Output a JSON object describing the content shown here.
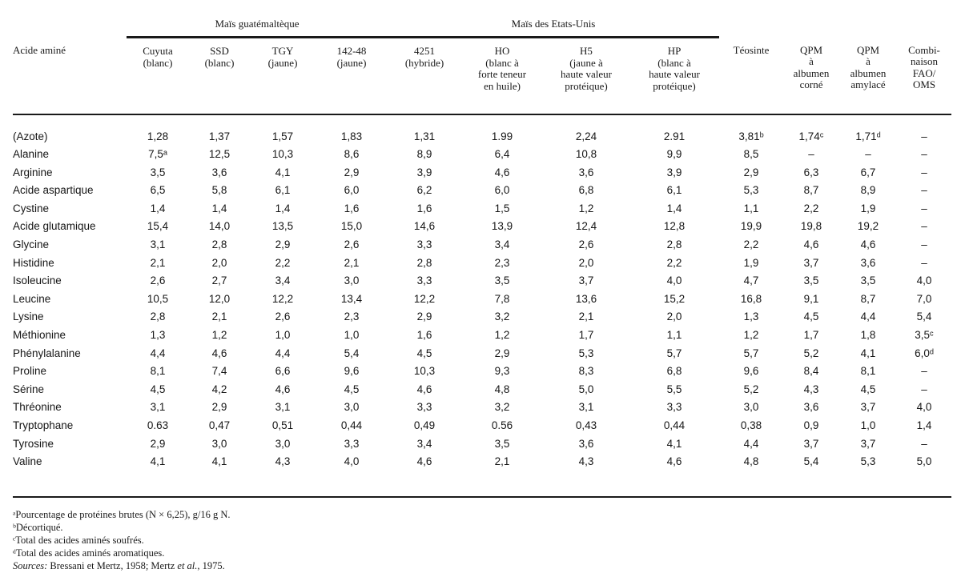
{
  "page": {
    "background_color": "#ffffff",
    "text_color": "#1a1a1a"
  },
  "table": {
    "row_header_label": "Acide aminé",
    "groups": [
      {
        "label": "Maïs guatémaltèque",
        "span": 4
      },
      {
        "label": "Maïs des Etats-Unis",
        "span": 4
      }
    ],
    "columns": [
      {
        "id": "cuyuta",
        "lines": [
          "Cuyuta",
          "(blanc)"
        ]
      },
      {
        "id": "ssd",
        "lines": [
          "SSD",
          "(blanc)"
        ]
      },
      {
        "id": "tgy",
        "lines": [
          "TGY",
          "(jaune)"
        ]
      },
      {
        "id": "142-48",
        "lines": [
          "142-48",
          "(jaune)"
        ]
      },
      {
        "id": "4251",
        "lines": [
          "4251",
          "(hybride)"
        ]
      },
      {
        "id": "ho",
        "lines": [
          "HO",
          "(blanc à",
          "forte teneur",
          "en huile)"
        ]
      },
      {
        "id": "h5",
        "lines": [
          "H5",
          "(jaune à",
          "haute valeur",
          "protéique)"
        ]
      },
      {
        "id": "hp",
        "lines": [
          "HP",
          "(blanc à",
          "haute valeur",
          "protéique)"
        ]
      },
      {
        "id": "teosinte",
        "lines": [
          "Téosinte"
        ]
      },
      {
        "id": "qpm-corne",
        "lines": [
          "QPM",
          "à",
          "albumen",
          "corné"
        ]
      },
      {
        "id": "qpm-amylace",
        "lines": [
          "QPM",
          "à",
          "albumen",
          "amylacé"
        ]
      },
      {
        "id": "fao-oms",
        "lines": [
          "Combi-",
          "naison",
          "FAO/",
          "OMS"
        ]
      }
    ],
    "rows": [
      {
        "label": "(Azote)",
        "values": [
          "1,28",
          "1,37",
          "1,57",
          "1,83",
          "1,31",
          "1.99",
          "2,24",
          "2.91",
          "3,81ᵇ",
          "1,74ᶜ",
          "1,71ᵈ",
          "–"
        ]
      },
      {
        "label": "Alanine",
        "values": [
          "7,5ᵃ",
          "12,5",
          "10,3",
          "8,6",
          "8,9",
          "6,4",
          "10,8",
          "9,9",
          "8,5",
          "–",
          "–",
          "–"
        ]
      },
      {
        "label": "Arginine",
        "values": [
          "3,5",
          "3,6",
          "4,1",
          "2,9",
          "3,9",
          "4,6",
          "3,6",
          "3,9",
          "2,9",
          "6,3",
          "6,7",
          "–"
        ]
      },
      {
        "label": "Acide aspartique",
        "values": [
          "6,5",
          "5,8",
          "6,1",
          "6,0",
          "6,2",
          "6,0",
          "6,8",
          "6,1",
          "5,3",
          "8,7",
          "8,9",
          "–"
        ]
      },
      {
        "label": "Cystine",
        "values": [
          "1,4",
          "1,4",
          "1,4",
          "1,6",
          "1,6",
          "1,5",
          "1,2",
          "1,4",
          "1,1",
          "2,2",
          "1,9",
          "–"
        ]
      },
      {
        "label": "Acide glutamique",
        "values": [
          "15,4",
          "14,0",
          "13,5",
          "15,0",
          "14,6",
          "13,9",
          "12,4",
          "12,8",
          "19,9",
          "19,8",
          "19,2",
          "–"
        ]
      },
      {
        "label": "Glycine",
        "values": [
          "3,1",
          "2,8",
          "2,9",
          "2,6",
          "3,3",
          "3,4",
          "2,6",
          "2,8",
          "2,2",
          "4,6",
          "4,6",
          "–"
        ]
      },
      {
        "label": "Histidine",
        "values": [
          "2,1",
          "2,0",
          "2,2",
          "2,1",
          "2,8",
          "2,3",
          "2,0",
          "2,2",
          "1,9",
          "3,7",
          "3,6",
          "–"
        ]
      },
      {
        "label": "Isoleucine",
        "values": [
          "2,6",
          "2,7",
          "3,4",
          "3,0",
          "3,3",
          "3,5",
          "3,7",
          "4,0",
          "4,7",
          "3,5",
          "3,5",
          "4,0"
        ]
      },
      {
        "label": "Leucine",
        "values": [
          "10,5",
          "12,0",
          "12,2",
          "13,4",
          "12,2",
          "7,8",
          "13,6",
          "15,2",
          "16,8",
          "9,1",
          "8,7",
          "7,0"
        ]
      },
      {
        "label": "Lysine",
        "values": [
          "2,8",
          "2,1",
          "2,6",
          "2,3",
          "2,9",
          "3,2",
          "2,1",
          "2,0",
          "1,3",
          "4,5",
          "4,4",
          "5,4"
        ]
      },
      {
        "label": "Méthionine",
        "values": [
          "1,3",
          "1,2",
          "1,0",
          "1,0",
          "1,6",
          "1,2",
          "1,7",
          "1,1",
          "1,2",
          "1,7",
          "1,8",
          "3,5ᶜ"
        ]
      },
      {
        "label": "Phénylalanine",
        "values": [
          "4,4",
          "4,6",
          "4,4",
          "5,4",
          "4,5",
          "2,9",
          "5,3",
          "5,7",
          "5,7",
          "5,2",
          "4,1",
          "6,0ᵈ"
        ]
      },
      {
        "label": "Proline",
        "values": [
          "8,1",
          "7,4",
          "6,6",
          "9,6",
          "10,3",
          "9,3",
          "8,3",
          "6,8",
          "9,6",
          "8,4",
          "8,1",
          "–"
        ]
      },
      {
        "label": "Sérine",
        "values": [
          "4,5",
          "4,2",
          "4,6",
          "4,5",
          "4,6",
          "4,8",
          "5,0",
          "5,5",
          "5,2",
          "4,3",
          "4,5",
          "–"
        ]
      },
      {
        "label": "Thréonine",
        "values": [
          "3,1",
          "2,9",
          "3,1",
          "3,0",
          "3,3",
          "3,2",
          "3,1",
          "3,3",
          "3,0",
          "3,6",
          "3,7",
          "4,0"
        ]
      },
      {
        "label": "Tryptophane",
        "values": [
          "0.63",
          "0,47",
          "0,51",
          "0,44",
          "0,49",
          "0.56",
          "0,43",
          "0,44",
          "0,38",
          "0,9",
          "1,0",
          "1,4"
        ]
      },
      {
        "label": "Tyrosine",
        "values": [
          "2,9",
          "3,0",
          "3,0",
          "3,3",
          "3,4",
          "3,5",
          "3,6",
          "4,1",
          "4,4",
          "3,7",
          "3,7",
          "–"
        ]
      },
      {
        "label": "Valine",
        "values": [
          "4,1",
          "4,1",
          "4,3",
          "4,0",
          "4,6",
          "2,1",
          "4,3",
          "4,6",
          "4,8",
          "5,4",
          "5,3",
          "5,0"
        ]
      }
    ]
  },
  "footnotes": [
    "ᵃPourcentage de protéines brutes (N × 6,25), g/16 g N.",
    "ᵇDécortiqué.",
    "ᶜTotal des acides aminés soufrés.",
    "ᵈTotal des acides aminés aromatiques."
  ],
  "sources": {
    "label": "Sources:",
    "pre": " Bressani et Mertz, 1958; Mertz ",
    "etal": "et al.",
    "post": ", 1975."
  }
}
